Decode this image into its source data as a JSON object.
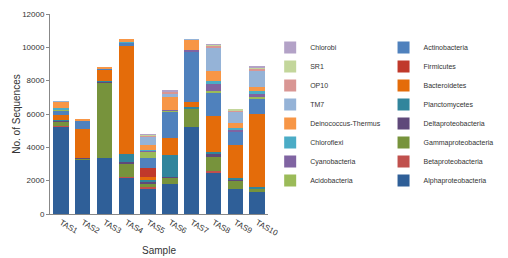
{
  "chart_data": {
    "type": "bar",
    "stacked": true,
    "grid": false,
    "legend": "right",
    "x_label": "Sample",
    "y_label": "No. of Sequences",
    "categories": [
      "TAS1",
      "TAS2",
      "TAS3",
      "TAS4",
      "TAS5",
      "TAS6",
      "TAS7",
      "TAS8",
      "TAS9",
      "TAS10"
    ],
    "ylim": [
      0,
      12000
    ],
    "yticks": [
      0,
      2000,
      4000,
      6000,
      8000,
      10000,
      12000
    ],
    "series": [
      {
        "name": "Alphaproteobacteria",
        "color": "#2F5F98",
        "values": [
          5250,
          3250,
          3350,
          2200,
          1500,
          1800,
          5200,
          2500,
          1500,
          1300
        ]
      },
      {
        "name": "Betaproteobacteria",
        "color": "#C0504D",
        "values": [
          20,
          20,
          0,
          30,
          100,
          0,
          0,
          100,
          0,
          0
        ]
      },
      {
        "name": "Gammaproteobacteria",
        "color": "#77933C",
        "values": [
          300,
          50,
          4550,
          800,
          250,
          400,
          1100,
          800,
          500,
          200
        ]
      },
      {
        "name": "Deltaproteobacteria",
        "color": "#5F497A",
        "values": [
          50,
          50,
          50,
          100,
          100,
          50,
          50,
          200,
          50,
          50
        ]
      },
      {
        "name": "Planctomycetes",
        "color": "#31859C",
        "values": [
          50,
          20,
          50,
          450,
          100,
          1300,
          100,
          100,
          100,
          50
        ]
      },
      {
        "name": "Bacteroidetes",
        "color": "#E46C0A",
        "values": [
          250,
          1700,
          650,
          6500,
          200,
          1000,
          300,
          2200,
          2000,
          4400
        ]
      },
      {
        "name": "Firmicutes",
        "color": "#C0392B",
        "values": [
          0,
          0,
          0,
          0,
          500,
          0,
          0,
          0,
          0,
          0
        ]
      },
      {
        "name": "Actinobacteria",
        "color": "#4F81BD",
        "values": [
          300,
          500,
          50,
          200,
          600,
          1600,
          3000,
          1400,
          800,
          900
        ]
      },
      {
        "name": "Acidobacteria",
        "color": "#9BBB59",
        "values": [
          50,
          0,
          0,
          0,
          400,
          50,
          0,
          100,
          0,
          100
        ]
      },
      {
        "name": "Cyanobacteria",
        "color": "#8064A2",
        "values": [
          20,
          30,
          0,
          0,
          50,
          50,
          100,
          400,
          100,
          200
        ]
      },
      {
        "name": "Chloroflexi",
        "color": "#4BACC6",
        "values": [
          50,
          0,
          0,
          50,
          50,
          0,
          0,
          200,
          100,
          200
        ]
      },
      {
        "name": "Deinococcus-Thermus",
        "color": "#F79646",
        "values": [
          400,
          30,
          100,
          200,
          300,
          800,
          600,
          600,
          300,
          200
        ]
      },
      {
        "name": "TM7",
        "color": "#95B3D7",
        "values": [
          20,
          0,
          0,
          0,
          500,
          200,
          50,
          1400,
          700,
          1000
        ]
      },
      {
        "name": "OP10",
        "color": "#D99694",
        "values": [
          0,
          0,
          0,
          0,
          50,
          100,
          0,
          100,
          50,
          100
        ]
      },
      {
        "name": "SR1",
        "color": "#C3D69B",
        "values": [
          0,
          0,
          0,
          0,
          50,
          0,
          0,
          50,
          50,
          100
        ]
      },
      {
        "name": "Chlorobi",
        "color": "#B3A2C7",
        "values": [
          0,
          0,
          0,
          0,
          50,
          100,
          0,
          50,
          0,
          50
        ]
      }
    ]
  }
}
